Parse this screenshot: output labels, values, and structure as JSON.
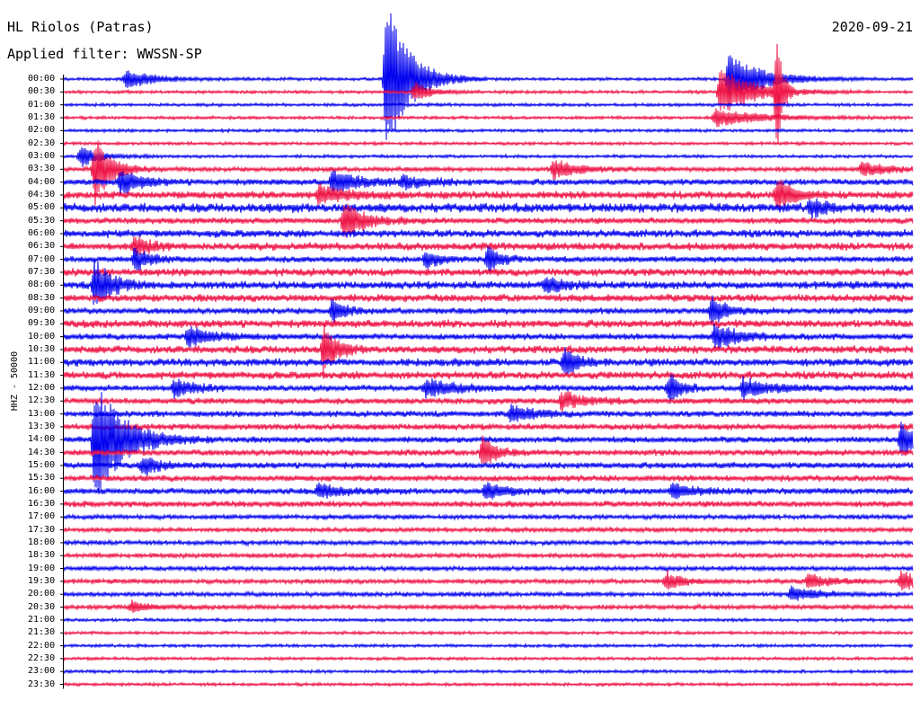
{
  "header": {
    "station": "HL Riolos (Patras)",
    "filter": "Applied filter: WWSSN-SP",
    "date": "2020-09-21"
  },
  "chart_data": {
    "type": "line",
    "title": "HL Riolos (Patras)",
    "subtitle": "Applied filter: WWSSN-SP",
    "date": "2020-09-21",
    "ylabel": "HHZ - 50000",
    "trace_colors": [
      "#0000ee",
      "#ee1144"
    ],
    "ticks": [
      "00:00",
      "00:30",
      "01:00",
      "01:30",
      "02:00",
      "02:30",
      "03:00",
      "03:30",
      "04:00",
      "04:30",
      "05:00",
      "05:30",
      "06:00",
      "06:30",
      "07:00",
      "07:30",
      "08:00",
      "08:30",
      "09:00",
      "09:30",
      "10:00",
      "10:30",
      "11:00",
      "11:30",
      "12:00",
      "12:30",
      "13:00",
      "13:30",
      "14:00",
      "14:30",
      "15:00",
      "15:30",
      "16:00",
      "16:30",
      "17:00",
      "17:30",
      "18:00",
      "18:30",
      "19:00",
      "19:30",
      "20:00",
      "20:30",
      "21:00",
      "21:30",
      "22:00",
      "22:30",
      "23:00",
      "23:30"
    ],
    "background_noise": [
      2,
      2,
      2,
      2,
      2,
      2,
      2,
      3,
      4,
      5,
      6,
      4,
      5,
      5,
      4,
      5,
      5,
      5,
      4,
      5,
      4,
      5,
      5,
      5,
      4,
      4,
      4,
      4,
      4,
      4,
      4,
      4,
      4,
      4,
      3,
      3,
      3,
      3,
      3,
      3,
      3,
      3,
      2,
      2,
      2,
      2,
      2,
      2
    ],
    "events": [
      {
        "row": 0,
        "minute": 2.2,
        "amp": 10,
        "duration": 1.5
      },
      {
        "row": 0,
        "minute": 11.4,
        "amp": 90,
        "duration": 1.2
      },
      {
        "row": 0,
        "minute": 23.5,
        "amp": 28,
        "duration": 1.8
      },
      {
        "row": 1,
        "minute": 12.4,
        "amp": 12,
        "duration": 0.8
      },
      {
        "row": 1,
        "minute": 23.2,
        "amp": 28,
        "duration": 1.8
      },
      {
        "row": 1,
        "minute": 25.2,
        "amp": 70,
        "duration": 0.2
      },
      {
        "row": 3,
        "minute": 23.0,
        "amp": 10,
        "duration": 2.5
      },
      {
        "row": 6,
        "minute": 0.6,
        "amp": 12,
        "duration": 1.0
      },
      {
        "row": 7,
        "minute": 1.1,
        "amp": 40,
        "duration": 0.8
      },
      {
        "row": 7,
        "minute": 17.3,
        "amp": 10,
        "duration": 1.5
      },
      {
        "row": 7,
        "minute": 28.2,
        "amp": 8,
        "duration": 1.2
      },
      {
        "row": 8,
        "minute": 2.0,
        "amp": 14,
        "duration": 1.0
      },
      {
        "row": 8,
        "minute": 9.5,
        "amp": 12,
        "duration": 1.5
      },
      {
        "row": 8,
        "minute": 12.0,
        "amp": 6,
        "duration": 1.5
      },
      {
        "row": 9,
        "minute": 9.0,
        "amp": 10,
        "duration": 1.5
      },
      {
        "row": 9,
        "minute": 25.2,
        "amp": 18,
        "duration": 0.8
      },
      {
        "row": 10,
        "minute": 26.4,
        "amp": 10,
        "duration": 0.6
      },
      {
        "row": 11,
        "minute": 9.9,
        "amp": 22,
        "duration": 1.0
      },
      {
        "row": 13,
        "minute": 2.5,
        "amp": 10,
        "duration": 0.8
      },
      {
        "row": 14,
        "minute": 2.5,
        "amp": 12,
        "duration": 0.8
      },
      {
        "row": 14,
        "minute": 12.8,
        "amp": 10,
        "duration": 0.6
      },
      {
        "row": 14,
        "minute": 15.0,
        "amp": 14,
        "duration": 0.6
      },
      {
        "row": 16,
        "minute": 1.1,
        "amp": 30,
        "duration": 0.8
      },
      {
        "row": 16,
        "minute": 17.0,
        "amp": 10,
        "duration": 0.8
      },
      {
        "row": 18,
        "minute": 9.5,
        "amp": 16,
        "duration": 0.5
      },
      {
        "row": 18,
        "minute": 22.9,
        "amp": 14,
        "duration": 0.8
      },
      {
        "row": 20,
        "minute": 4.4,
        "amp": 12,
        "duration": 1.2
      },
      {
        "row": 20,
        "minute": 23.0,
        "amp": 14,
        "duration": 1.2
      },
      {
        "row": 21,
        "minute": 9.2,
        "amp": 28,
        "duration": 0.6
      },
      {
        "row": 22,
        "minute": 17.7,
        "amp": 18,
        "duration": 0.6
      },
      {
        "row": 24,
        "minute": 3.9,
        "amp": 10,
        "duration": 1.0
      },
      {
        "row": 24,
        "minute": 12.8,
        "amp": 10,
        "duration": 1.5
      },
      {
        "row": 24,
        "minute": 21.4,
        "amp": 16,
        "duration": 0.6
      },
      {
        "row": 24,
        "minute": 24.0,
        "amp": 10,
        "duration": 1.5
      },
      {
        "row": 25,
        "minute": 17.6,
        "amp": 10,
        "duration": 1.2
      },
      {
        "row": 26,
        "minute": 15.8,
        "amp": 10,
        "duration": 1.2
      },
      {
        "row": 28,
        "minute": 1.1,
        "amp": 70,
        "duration": 1.5
      },
      {
        "row": 28,
        "minute": 29.6,
        "amp": 20,
        "duration": 0.8
      },
      {
        "row": 29,
        "minute": 14.8,
        "amp": 18,
        "duration": 0.6
      },
      {
        "row": 30,
        "minute": 2.8,
        "amp": 10,
        "duration": 0.8
      },
      {
        "row": 32,
        "minute": 9.0,
        "amp": 8,
        "duration": 1.2
      },
      {
        "row": 32,
        "minute": 14.9,
        "amp": 8,
        "duration": 1.2
      },
      {
        "row": 32,
        "minute": 21.5,
        "amp": 8,
        "duration": 1.2
      },
      {
        "row": 39,
        "minute": 21.3,
        "amp": 10,
        "duration": 0.8
      },
      {
        "row": 39,
        "minute": 26.3,
        "amp": 8,
        "duration": 1.2
      },
      {
        "row": 39,
        "minute": 29.6,
        "amp": 12,
        "duration": 0.8
      },
      {
        "row": 40,
        "minute": 25.7,
        "amp": 8,
        "duration": 1.2
      },
      {
        "row": 41,
        "minute": 2.4,
        "amp": 6,
        "duration": 0.8
      }
    ]
  }
}
